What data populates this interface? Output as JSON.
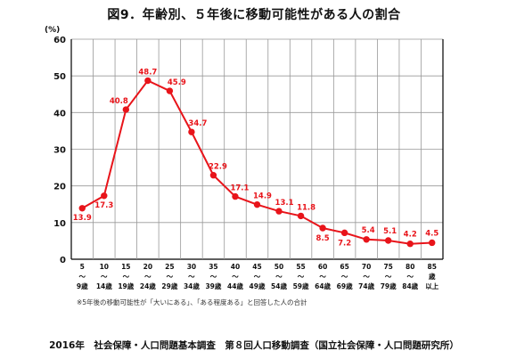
{
  "title": "図9．年齢別、５年後に移動可能性がある人の割合",
  "footnote": "※5年後の移動可能性が「大いにある」、「ある程度ある」と回答した人の合計",
  "source": "2016年　社会保障・人口問題基本調査　第８回人口移動調査（国立社会保障・人口問題研究所）",
  "colors": {
    "line": "#e8141a",
    "grid": "#999999",
    "axis": "#000000"
  },
  "chart_data": {
    "type": "line",
    "title": "図9．年齢別、５年後に移動可能性がある人の割合",
    "ylabel": "(%)",
    "xlabel": "",
    "ylim": [
      0,
      60
    ],
    "yticks": [
      0,
      10,
      20,
      30,
      40,
      50,
      60
    ],
    "grid": true,
    "categories": [
      [
        "5",
        "～",
        "9歳"
      ],
      [
        "10",
        "～",
        "14歳"
      ],
      [
        "15",
        "～",
        "19歳"
      ],
      [
        "20",
        "～",
        "24歳"
      ],
      [
        "25",
        "～",
        "29歳"
      ],
      [
        "30",
        "～",
        "34歳"
      ],
      [
        "35",
        "～",
        "39歳"
      ],
      [
        "40",
        "～",
        "44歳"
      ],
      [
        "45",
        "～",
        "49歳"
      ],
      [
        "50",
        "～",
        "54歳"
      ],
      [
        "55",
        "～",
        "59歳"
      ],
      [
        "60",
        "～",
        "64歳"
      ],
      [
        "65",
        "～",
        "69歳"
      ],
      [
        "70",
        "～",
        "74歳"
      ],
      [
        "75",
        "～",
        "79歳"
      ],
      [
        "80",
        "～",
        "84歳"
      ],
      [
        "85",
        "歳",
        "以上"
      ]
    ],
    "values": [
      13.9,
      17.3,
      40.8,
      48.7,
      45.9,
      34.7,
      22.9,
      17.1,
      14.9,
      13.1,
      11.8,
      8.5,
      7.2,
      5.4,
      5.1,
      4.2,
      4.5
    ],
    "labels": [
      "13.9",
      "17.3",
      "40.8",
      "48.7",
      "45.9",
      "34.7",
      "22.9",
      "17.1",
      "14.9",
      "13.1",
      "11.8",
      "8.5",
      "7.2",
      "5.4",
      "5.1",
      "4.2",
      "4.5"
    ]
  }
}
